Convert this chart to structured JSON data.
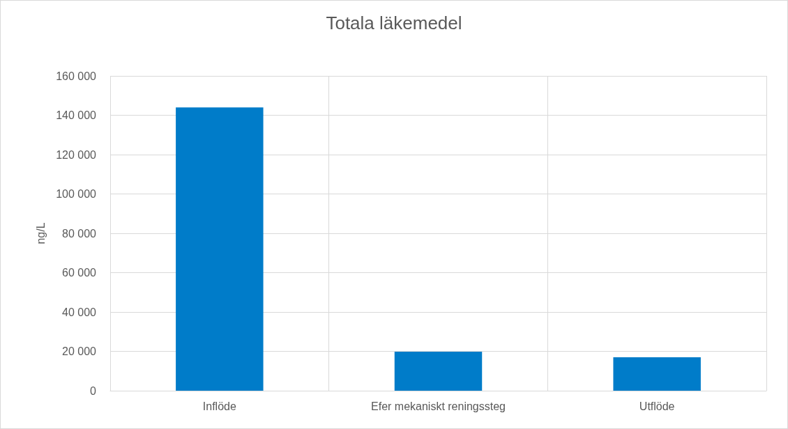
{
  "chart_data": {
    "type": "bar",
    "title": "Totala läkemedel",
    "ylabel": "ng/L",
    "categories": [
      "Inflöde",
      "Efer mekaniskt reningssteg",
      "Utflöde"
    ],
    "values": [
      144000,
      19800,
      17000
    ],
    "color": "#007cc9",
    "ylim": [
      0,
      160000
    ],
    "yticks": [
      {
        "value": 0,
        "label": "0"
      },
      {
        "value": 20000,
        "label": "20 000"
      },
      {
        "value": 40000,
        "label": "40 000"
      },
      {
        "value": 60000,
        "label": "60 000"
      },
      {
        "value": 80000,
        "label": "80 000"
      },
      {
        "value": 100000,
        "label": "100 000"
      },
      {
        "value": 120000,
        "label": "120 000"
      },
      {
        "value": 140000,
        "label": "140 000"
      },
      {
        "value": 160000,
        "label": "160 000"
      }
    ],
    "grid": true
  }
}
